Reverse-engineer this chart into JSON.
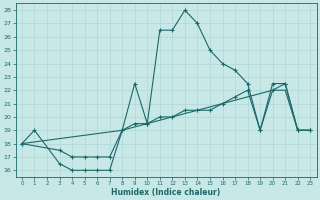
{
  "xlabel": "Humidex (Indice chaleur)",
  "background_color": "#c8e8e8",
  "grid_color": "#b0d4d4",
  "line_color": "#1a6868",
  "xlim": [
    -0.5,
    23.5
  ],
  "ylim": [
    15.5,
    28.5
  ],
  "xticks": [
    0,
    1,
    2,
    3,
    4,
    5,
    6,
    7,
    8,
    9,
    10,
    11,
    12,
    13,
    14,
    15,
    16,
    17,
    18,
    19,
    20,
    21,
    22,
    23
  ],
  "yticks": [
    16,
    17,
    18,
    19,
    20,
    21,
    22,
    23,
    24,
    25,
    26,
    27,
    28
  ],
  "line1_x": [
    0,
    1,
    3,
    4,
    5,
    6,
    7,
    8,
    9,
    10,
    11,
    12,
    13,
    14,
    15,
    16,
    17,
    18,
    19,
    20,
    21,
    22,
    23
  ],
  "line1_y": [
    18.0,
    19.0,
    16.5,
    16.0,
    16.0,
    16.0,
    16.0,
    19.0,
    22.5,
    19.5,
    26.5,
    26.5,
    28.0,
    27.0,
    25.0,
    24.0,
    23.5,
    22.5,
    19.0,
    22.5,
    22.5,
    19.0,
    19.0
  ],
  "line2_x": [
    0,
    3,
    4,
    5,
    6,
    7,
    8,
    9,
    10,
    11,
    12,
    13,
    14,
    15,
    16,
    17,
    18,
    19,
    20,
    21,
    22,
    23
  ],
  "line2_y": [
    18.0,
    17.5,
    17.0,
    17.0,
    17.0,
    17.0,
    19.0,
    19.5,
    19.5,
    20.0,
    20.0,
    20.5,
    20.5,
    20.5,
    21.0,
    21.5,
    22.0,
    19.0,
    22.0,
    22.5,
    19.0,
    19.0
  ],
  "line3_x": [
    0,
    8,
    10,
    12,
    14,
    16,
    18,
    20,
    21,
    22,
    23
  ],
  "line3_y": [
    18.0,
    19.0,
    19.5,
    20.0,
    20.5,
    21.0,
    21.5,
    22.0,
    22.0,
    19.0,
    19.0
  ]
}
